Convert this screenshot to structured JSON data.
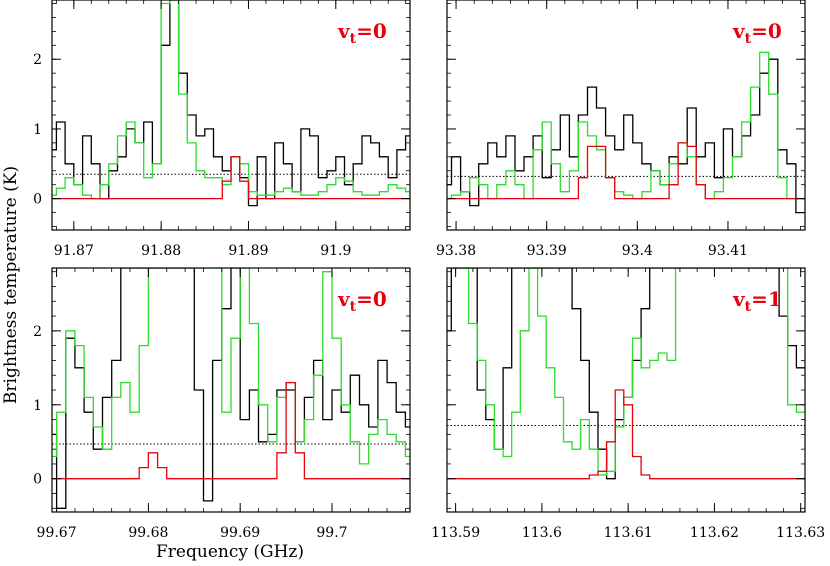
{
  "figure": {
    "xlabel": "Frequency (GHz)",
    "ylabel": "Brightness temperature (K)"
  },
  "colors": {
    "observed": "#000000",
    "full_model": "#2ddc2d",
    "species_model": "#e8000d",
    "rms_level": "#000000",
    "label": "#e8000d"
  },
  "chart_data": [
    {
      "type": "line",
      "label_main": "v",
      "label_sub": "t",
      "label_value": "=0",
      "xlim": [
        91.8675,
        91.9085
      ],
      "ylim": [
        -0.45,
        2.85
      ],
      "xticks": [
        91.87,
        91.88,
        91.89,
        91.9
      ],
      "xtick_labels": [
        "91.87",
        "91.88",
        "91.89",
        "91.9"
      ],
      "yticks": [
        0,
        1,
        2
      ],
      "ytick_labels": [
        "0",
        "1",
        "2"
      ],
      "dotted_level": 0.35,
      "series": [
        {
          "role": "observed",
          "x": [
            91.8675,
            91.8685,
            91.8695,
            91.8705,
            91.8715,
            91.8725,
            91.8735,
            91.8745,
            91.8755,
            91.8765,
            91.8775,
            91.8785,
            91.8795,
            91.8805,
            91.8815,
            91.8825,
            91.8835,
            91.8845,
            91.8855,
            91.8865,
            91.8875,
            91.8885,
            91.8895,
            91.8905,
            91.8915,
            91.8925,
            91.8935,
            91.8945,
            91.8955,
            91.8965,
            91.8975,
            91.8985,
            91.8995,
            91.9005,
            91.9015,
            91.9025,
            91.9035,
            91.9045,
            91.9055,
            91.9065,
            91.9075,
            91.9085
          ],
          "y": [
            0.7,
            1.1,
            0.5,
            0.2,
            0.9,
            0.5,
            0.0,
            0.4,
            0.6,
            1.0,
            0.8,
            1.1,
            0.5,
            2.2,
            2.9,
            1.8,
            1.2,
            0.9,
            1.0,
            0.6,
            0.4,
            0.6,
            0.3,
            -0.1,
            0.6,
            0.0,
            0.8,
            0.5,
            0.1,
            1.0,
            0.9,
            0.3,
            0.4,
            0.6,
            0.2,
            0.5,
            0.9,
            0.8,
            0.6,
            0.3,
            0.7,
            0.9
          ]
        },
        {
          "role": "full_model",
          "x": [
            91.8675,
            91.8685,
            91.8695,
            91.8705,
            91.8715,
            91.8725,
            91.8735,
            91.8745,
            91.8755,
            91.8765,
            91.8775,
            91.8785,
            91.8795,
            91.8805,
            91.8815,
            91.8825,
            91.8835,
            91.8845,
            91.8855,
            91.8865,
            91.8875,
            91.8885,
            91.8895,
            91.8905,
            91.8915,
            91.8925,
            91.8935,
            91.8945,
            91.8955,
            91.8965,
            91.8975,
            91.8985,
            91.8995,
            91.9005,
            91.9015,
            91.9025,
            91.9035,
            91.9045,
            91.9055,
            91.9065,
            91.9075,
            91.9085
          ],
          "y": [
            0.05,
            0.15,
            0.3,
            0.2,
            0.05,
            0.0,
            0.2,
            0.5,
            0.9,
            1.1,
            0.8,
            0.3,
            0.5,
            2.8,
            2.9,
            1.5,
            0.8,
            0.4,
            0.3,
            0.3,
            0.2,
            0.6,
            0.5,
            0.1,
            0.05,
            0.05,
            0.1,
            0.15,
            0.1,
            0.05,
            0.05,
            0.1,
            0.2,
            0.3,
            0.25,
            0.1,
            0.05,
            0.05,
            0.1,
            0.2,
            0.15,
            0.1
          ]
        },
        {
          "role": "species_model",
          "x": [
            91.8675,
            91.8855,
            91.8865,
            91.8875,
            91.8885,
            91.8895,
            91.8905,
            91.8915,
            91.9085
          ],
          "y": [
            0.0,
            0.0,
            0.0,
            0.25,
            0.6,
            0.25,
            0.0,
            0.0,
            0.0
          ]
        }
      ]
    },
    {
      "type": "line",
      "label_main": "v",
      "label_sub": "t",
      "label_value": "=0",
      "xlim": [
        93.379,
        93.4185
      ],
      "ylim": [
        -0.45,
        2.85
      ],
      "xticks": [
        93.38,
        93.39,
        93.4,
        93.41
      ],
      "xtick_labels": [
        "93.38",
        "93.39",
        "93.4",
        "93.41"
      ],
      "yticks": [
        0,
        1,
        2
      ],
      "ytick_labels": [
        "",
        "",
        ""
      ],
      "dotted_level": 0.32,
      "series": [
        {
          "role": "observed",
          "x": [
            93.379,
            93.38,
            93.381,
            93.382,
            93.383,
            93.384,
            93.385,
            93.386,
            93.387,
            93.388,
            93.389,
            93.39,
            93.391,
            93.392,
            93.393,
            93.394,
            93.395,
            93.396,
            93.397,
            93.398,
            93.399,
            93.4,
            93.401,
            93.402,
            93.403,
            93.404,
            93.405,
            93.406,
            93.407,
            93.408,
            93.409,
            93.41,
            93.411,
            93.412,
            93.413,
            93.414,
            93.415,
            93.416,
            93.417,
            93.418
          ],
          "y": [
            0.2,
            0.6,
            0.1,
            -0.1,
            0.5,
            0.8,
            0.6,
            0.9,
            0.4,
            0.6,
            0.9,
            0.3,
            0.7,
            1.2,
            0.6,
            1.2,
            1.6,
            1.3,
            0.9,
            0.7,
            1.2,
            0.8,
            0.5,
            0.4,
            0.2,
            0.6,
            0.5,
            1.3,
            0.6,
            0.8,
            0.3,
            1.0,
            0.6,
            0.9,
            1.2,
            1.8,
            2.0,
            0.7,
            0.5,
            -0.2
          ]
        },
        {
          "role": "full_model",
          "x": [
            93.379,
            93.38,
            93.381,
            93.382,
            93.383,
            93.384,
            93.385,
            93.386,
            93.387,
            93.388,
            93.389,
            93.39,
            93.391,
            93.392,
            93.393,
            93.394,
            93.395,
            93.396,
            93.397,
            93.398,
            93.399,
            93.4,
            93.401,
            93.402,
            93.403,
            93.404,
            93.405,
            93.406,
            93.407,
            93.408,
            93.409,
            93.41,
            93.411,
            93.412,
            93.413,
            93.414,
            93.415,
            93.416,
            93.417,
            93.418
          ],
          "y": [
            0.0,
            0.05,
            0.1,
            0.3,
            0.2,
            0.0,
            0.2,
            0.4,
            0.2,
            0.0,
            0.7,
            1.1,
            0.5,
            0.1,
            0.4,
            1.1,
            0.9,
            0.7,
            0.3,
            0.1,
            0.05,
            0.0,
            0.1,
            0.4,
            0.2,
            0.5,
            0.8,
            0.6,
            0.2,
            0.0,
            0.1,
            0.3,
            0.6,
            1.1,
            1.6,
            2.1,
            1.5,
            0.3,
            0.0,
            0.0
          ]
        },
        {
          "role": "species_model",
          "x": [
            93.379,
            93.393,
            93.394,
            93.395,
            93.396,
            93.397,
            93.398,
            93.4,
            93.403,
            93.404,
            93.405,
            93.406,
            93.407,
            93.408,
            93.4185
          ],
          "y": [
            0.0,
            0.0,
            0.3,
            0.75,
            0.75,
            0.3,
            0.0,
            0.0,
            0.0,
            0.2,
            0.8,
            0.75,
            0.2,
            0.0,
            0.0
          ]
        }
      ]
    },
    {
      "type": "line",
      "label_main": "v",
      "label_sub": "t",
      "label_value": "=0",
      "xlim": [
        99.6695,
        99.7085
      ],
      "ylim": [
        -0.45,
        2.85
      ],
      "xticks": [
        99.67,
        99.68,
        99.69,
        99.7
      ],
      "xtick_labels": [
        "99.67",
        "99.68",
        "99.69",
        "99.7"
      ],
      "yticks": [
        0,
        1,
        2
      ],
      "ytick_labels": [
        "0",
        "1",
        "2"
      ],
      "dotted_level": 0.47,
      "series": [
        {
          "role": "observed",
          "x": [
            99.6695,
            99.6705,
            99.6715,
            99.6725,
            99.6735,
            99.6745,
            99.6755,
            99.6765,
            99.6775,
            99.6785,
            99.6795,
            99.6805,
            99.6815,
            99.6825,
            99.6835,
            99.6845,
            99.6855,
            99.6865,
            99.6875,
            99.6885,
            99.6895,
            99.6905,
            99.6915,
            99.6925,
            99.6935,
            99.6945,
            99.6955,
            99.6965,
            99.6975,
            99.6985,
            99.6995,
            99.7005,
            99.7015,
            99.7025,
            99.7035,
            99.7045,
            99.7055,
            99.7065,
            99.7075,
            99.7085
          ],
          "y": [
            0.6,
            -0.4,
            1.9,
            1.5,
            0.9,
            0.4,
            1.1,
            1.6,
            2.9,
            2.9,
            2.9,
            2.9,
            2.9,
            2.9,
            2.9,
            2.9,
            1.2,
            -0.3,
            1.6,
            2.3,
            2.9,
            0.8,
            1.2,
            0.5,
            0.6,
            1.2,
            1.2,
            0.5,
            1.1,
            1.6,
            0.8,
            1.2,
            0.9,
            1.4,
            1.0,
            0.7,
            1.6,
            1.3,
            0.9,
            0.7
          ]
        },
        {
          "role": "full_model",
          "x": [
            99.6695,
            99.6705,
            99.6715,
            99.6725,
            99.6735,
            99.6745,
            99.6755,
            99.6765,
            99.6775,
            99.6785,
            99.6795,
            99.6805,
            99.6815,
            99.6825,
            99.6835,
            99.6845,
            99.6855,
            99.6865,
            99.6875,
            99.6885,
            99.6895,
            99.6905,
            99.6915,
            99.6925,
            99.6935,
            99.6945,
            99.6955,
            99.6965,
            99.6975,
            99.6985,
            99.6995,
            99.7005,
            99.7015,
            99.7025,
            99.7035,
            99.7045,
            99.7055,
            99.7065,
            99.7075,
            99.7085
          ],
          "y": [
            0.3,
            0.9,
            2.0,
            1.8,
            1.1,
            0.7,
            0.4,
            1.1,
            1.3,
            0.9,
            1.8,
            2.9,
            2.9,
            2.9,
            2.9,
            2.9,
            2.9,
            2.9,
            2.9,
            0.9,
            1.9,
            2.9,
            2.1,
            1.0,
            0.5,
            1.1,
            1.3,
            0.5,
            0.8,
            1.4,
            2.8,
            1.9,
            1.0,
            0.5,
            0.2,
            0.6,
            0.8,
            0.6,
            0.5,
            0.3
          ]
        },
        {
          "role": "species_model",
          "x": [
            99.6695,
            99.6785,
            99.6795,
            99.6805,
            99.6815,
            99.6825,
            99.6935,
            99.6945,
            99.6955,
            99.6965,
            99.6975,
            99.7085
          ],
          "y": [
            0.0,
            0.0,
            0.15,
            0.35,
            0.15,
            0.0,
            0.0,
            0.35,
            1.3,
            0.35,
            0.0,
            0.0
          ]
        }
      ]
    },
    {
      "type": "line",
      "label_main": "v",
      "label_sub": "t",
      "label_value": "=1",
      "xlim": [
        113.589,
        113.6305
      ],
      "ylim": [
        -0.45,
        2.85
      ],
      "xticks": [
        113.59,
        113.6,
        113.61,
        113.62,
        113.63
      ],
      "xtick_labels": [
        "113.59",
        "113.6",
        "113.61",
        "113.62",
        "113.63"
      ],
      "yticks": [
        0,
        1,
        2
      ],
      "ytick_labels": [
        "",
        "",
        ""
      ],
      "dotted_level": 0.72,
      "series": [
        {
          "role": "observed",
          "x": [
            113.589,
            113.59,
            113.591,
            113.592,
            113.593,
            113.594,
            113.595,
            113.596,
            113.597,
            113.598,
            113.599,
            113.6,
            113.601,
            113.602,
            113.603,
            113.604,
            113.605,
            113.606,
            113.607,
            113.608,
            113.609,
            113.61,
            113.611,
            113.612,
            113.613,
            113.614,
            113.615,
            113.616,
            113.617,
            113.618,
            113.619,
            113.62,
            113.621,
            113.622,
            113.623,
            113.624,
            113.625,
            113.626,
            113.627,
            113.628,
            113.629,
            113.63
          ],
          "y": [
            2.0,
            2.9,
            2.9,
            2.9,
            1.2,
            0.8,
            0.4,
            1.5,
            2.9,
            2.9,
            2.9,
            2.9,
            2.9,
            2.9,
            2.9,
            2.3,
            1.6,
            0.9,
            0.4,
            0.0,
            0.8,
            1.1,
            1.6,
            2.3,
            2.9,
            2.9,
            2.9,
            2.9,
            2.9,
            2.9,
            2.9,
            2.9,
            2.9,
            2.9,
            2.9,
            2.9,
            2.9,
            2.9,
            2.9,
            2.2,
            1.8,
            1.5
          ]
        },
        {
          "role": "full_model",
          "x": [
            113.589,
            113.59,
            113.591,
            113.592,
            113.593,
            113.594,
            113.595,
            113.596,
            113.597,
            113.598,
            113.599,
            113.6,
            113.601,
            113.602,
            113.603,
            113.604,
            113.605,
            113.606,
            113.607,
            113.608,
            113.609,
            113.61,
            113.611,
            113.612,
            113.613,
            113.614,
            113.615,
            113.616,
            113.617,
            113.618,
            113.619,
            113.62,
            113.621,
            113.622,
            113.623,
            113.624,
            113.625,
            113.626,
            113.627,
            113.628,
            113.629,
            113.63
          ],
          "y": [
            2.9,
            2.9,
            2.9,
            2.1,
            1.6,
            1.0,
            0.4,
            0.3,
            0.9,
            2.0,
            2.9,
            2.2,
            1.5,
            1.1,
            0.5,
            0.4,
            0.8,
            0.4,
            0.05,
            0.1,
            0.7,
            1.1,
            1.9,
            1.5,
            1.6,
            1.7,
            1.6,
            2.9,
            2.9,
            2.9,
            2.9,
            2.9,
            2.9,
            2.9,
            2.9,
            2.9,
            2.9,
            2.9,
            2.9,
            2.9,
            1.0,
            0.9
          ]
        },
        {
          "role": "species_model",
          "x": [
            113.589,
            113.605,
            113.606,
            113.607,
            113.608,
            113.609,
            113.61,
            113.611,
            113.612,
            113.613,
            113.6305
          ],
          "y": [
            0.0,
            0.0,
            0.05,
            0.1,
            0.5,
            1.2,
            1.0,
            0.3,
            0.05,
            0.0,
            0.0
          ]
        }
      ]
    }
  ]
}
